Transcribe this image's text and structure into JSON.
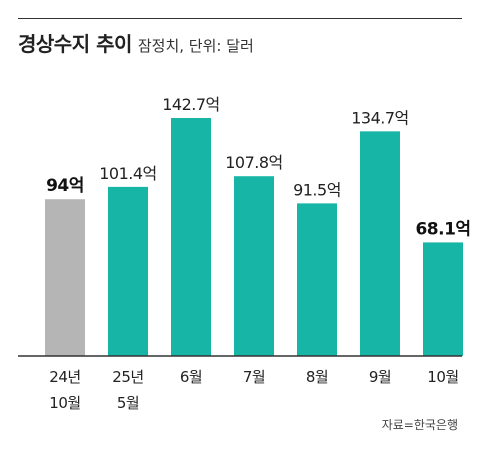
{
  "header": {
    "title": "경상수지 추이",
    "subtitle": "잠정치, 단위: 달러"
  },
  "source": "자료=한국은행",
  "colors": {
    "highlight_bar": "#b6b5b6",
    "bar": "#17b5a5",
    "baseline": "#333333",
    "label_normal": "#222222",
    "label_bold": "#111111"
  },
  "chart_data": {
    "type": "bar",
    "title": "경상수지 추이",
    "subtitle": "잠정치, 단위: 달러",
    "categories": [
      [
        "24년",
        "10월"
      ],
      [
        "25년",
        "5월"
      ],
      [
        "6월"
      ],
      [
        "7월"
      ],
      [
        "8월"
      ],
      [
        "9월"
      ],
      [
        "10월"
      ]
    ],
    "values": [
      94,
      101.4,
      142.7,
      107.8,
      91.5,
      134.7,
      68.1
    ],
    "data_labels": [
      "94억",
      "101.4억",
      "142.7억",
      "107.8억",
      "91.5억",
      "134.7억",
      "68.1억"
    ],
    "bold_labels": [
      true,
      false,
      false,
      false,
      false,
      false,
      true
    ],
    "highlight": [
      true,
      false,
      false,
      false,
      false,
      false,
      false
    ],
    "ylim": [
      0,
      150
    ],
    "grid": false,
    "legend": "none"
  }
}
